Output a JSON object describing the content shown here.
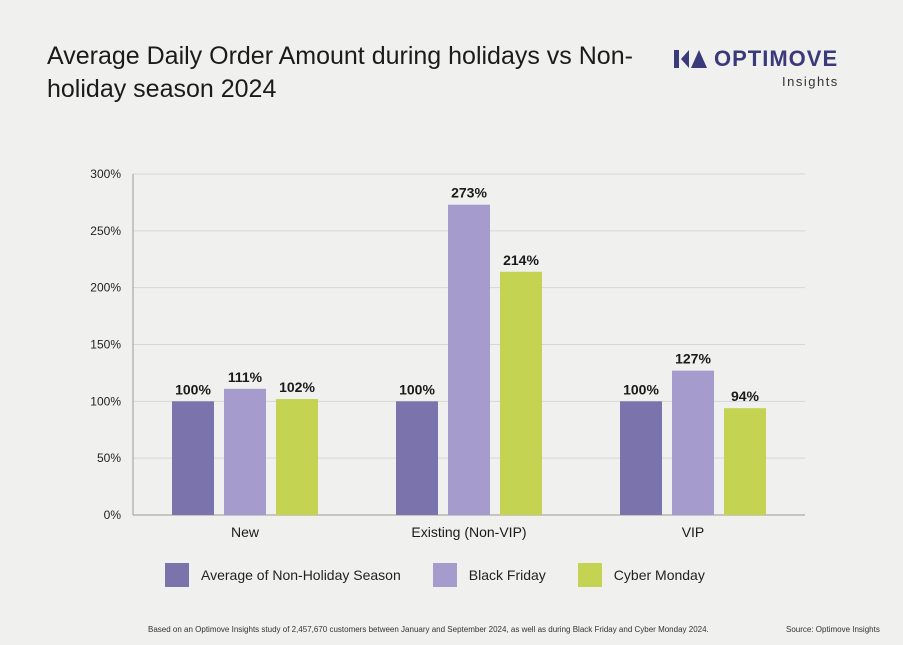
{
  "title": "Average Daily Order Amount during holidays vs Non-holiday season 2024",
  "brand": {
    "name": "OPTIMOVE",
    "sub": "Insights",
    "color": "#3a3a7a"
  },
  "chart_data": {
    "type": "bar",
    "categories": [
      "New",
      "Existing (Non-VIP)",
      "VIP"
    ],
    "series": [
      {
        "name": "Average of Non-Holiday Season",
        "color": "#7b73ab",
        "values": [
          100,
          100,
          100
        ],
        "labels": [
          "100%",
          "100%",
          "100%"
        ]
      },
      {
        "name": "Black Friday",
        "color": "#a59bcc",
        "values": [
          111,
          273,
          127
        ],
        "labels": [
          "111%",
          "273%",
          "127%"
        ]
      },
      {
        "name": "Cyber Monday",
        "color": "#c4d452",
        "values": [
          102,
          214,
          94
        ],
        "labels": [
          "102%",
          "214%",
          "94%"
        ]
      }
    ],
    "ylim": [
      0,
      300
    ],
    "yticks": [
      0,
      50,
      100,
      150,
      200,
      250,
      300
    ],
    "ytick_labels": [
      "0%",
      "50%",
      "100%",
      "150%",
      "200%",
      "250%",
      "300%"
    ],
    "grid": true,
    "legend": "bottom",
    "xlabel": "",
    "ylabel": ""
  },
  "footnote": "Based on an Optimove Insights study of 2,457,670 customers between January and September 2024, as well as during Black Friday and Cyber Monday 2024.",
  "source": "Source: Optimove Insights"
}
